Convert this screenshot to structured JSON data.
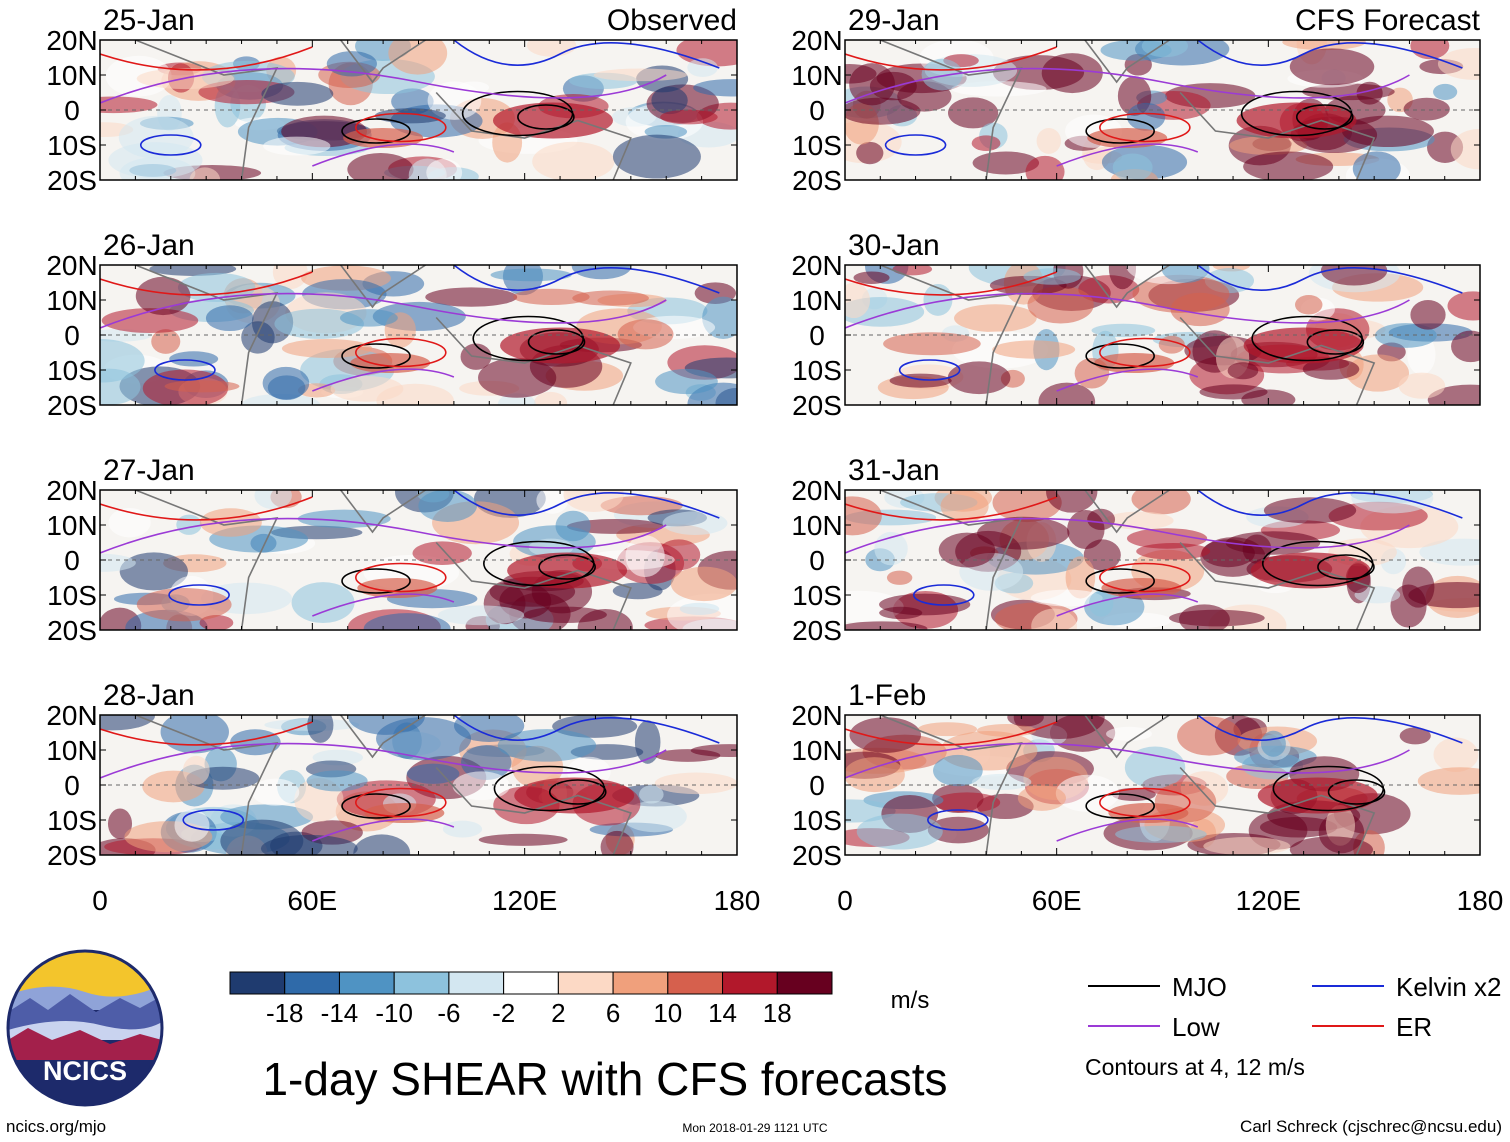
{
  "chart_data": {
    "type": "heatmap",
    "title": "1-day SHEAR with CFS forecasts",
    "variable": "SHEAR",
    "units": "m/s",
    "xlim": [
      0,
      180
    ],
    "ylim": [
      -20,
      20
    ],
    "x_ticks": [
      "0",
      "60E",
      "120E",
      "180"
    ],
    "y_ticks": [
      "20N",
      "10N",
      "0",
      "10S",
      "20S"
    ],
    "panels": [
      {
        "date": "25-Jan",
        "source": "Observed",
        "source_label": "Observed"
      },
      {
        "date": "26-Jan",
        "source": "Observed",
        "source_label": ""
      },
      {
        "date": "27-Jan",
        "source": "Observed",
        "source_label": ""
      },
      {
        "date": "28-Jan",
        "source": "Observed",
        "source_label": ""
      },
      {
        "date": "29-Jan",
        "source": "CFS Forecast",
        "source_label": "CFS Forecast"
      },
      {
        "date": "30-Jan",
        "source": "CFS Forecast",
        "source_label": ""
      },
      {
        "date": "31-Jan",
        "source": "CFS Forecast",
        "source_label": ""
      },
      {
        "date": "1-Feb",
        "source": "CFS Forecast",
        "source_label": ""
      }
    ],
    "colorbar": {
      "ticks": [
        "-18",
        "-14",
        "-10",
        "-6",
        "-2",
        "2",
        "6",
        "10",
        "14",
        "18"
      ],
      "colors": [
        "#1f3b6f",
        "#2f6aa9",
        "#4f93c3",
        "#8dc2dd",
        "#d3e7f1",
        "#ffffff",
        "#fcd9c5",
        "#f0a07c",
        "#d6604d",
        "#b2182b",
        "#67001f"
      ],
      "units_label": "m/s"
    },
    "legend": {
      "items": [
        {
          "name": "MJO",
          "color": "#000000"
        },
        {
          "name": "Kelvin x2",
          "color": "#1a2bd8"
        },
        {
          "name": "Low",
          "color": "#9b3ad6"
        },
        {
          "name": "ER",
          "color": "#e01818"
        }
      ],
      "note": "Contours at 4, 12 m/s"
    }
  },
  "footer": {
    "logo_text": "NCICS",
    "url": "ncics.org/mjo",
    "timestamp": "Mon 2018-01-29 1121 UTC",
    "credit": "Carl Schreck (cjschrec@ncsu.edu)"
  }
}
